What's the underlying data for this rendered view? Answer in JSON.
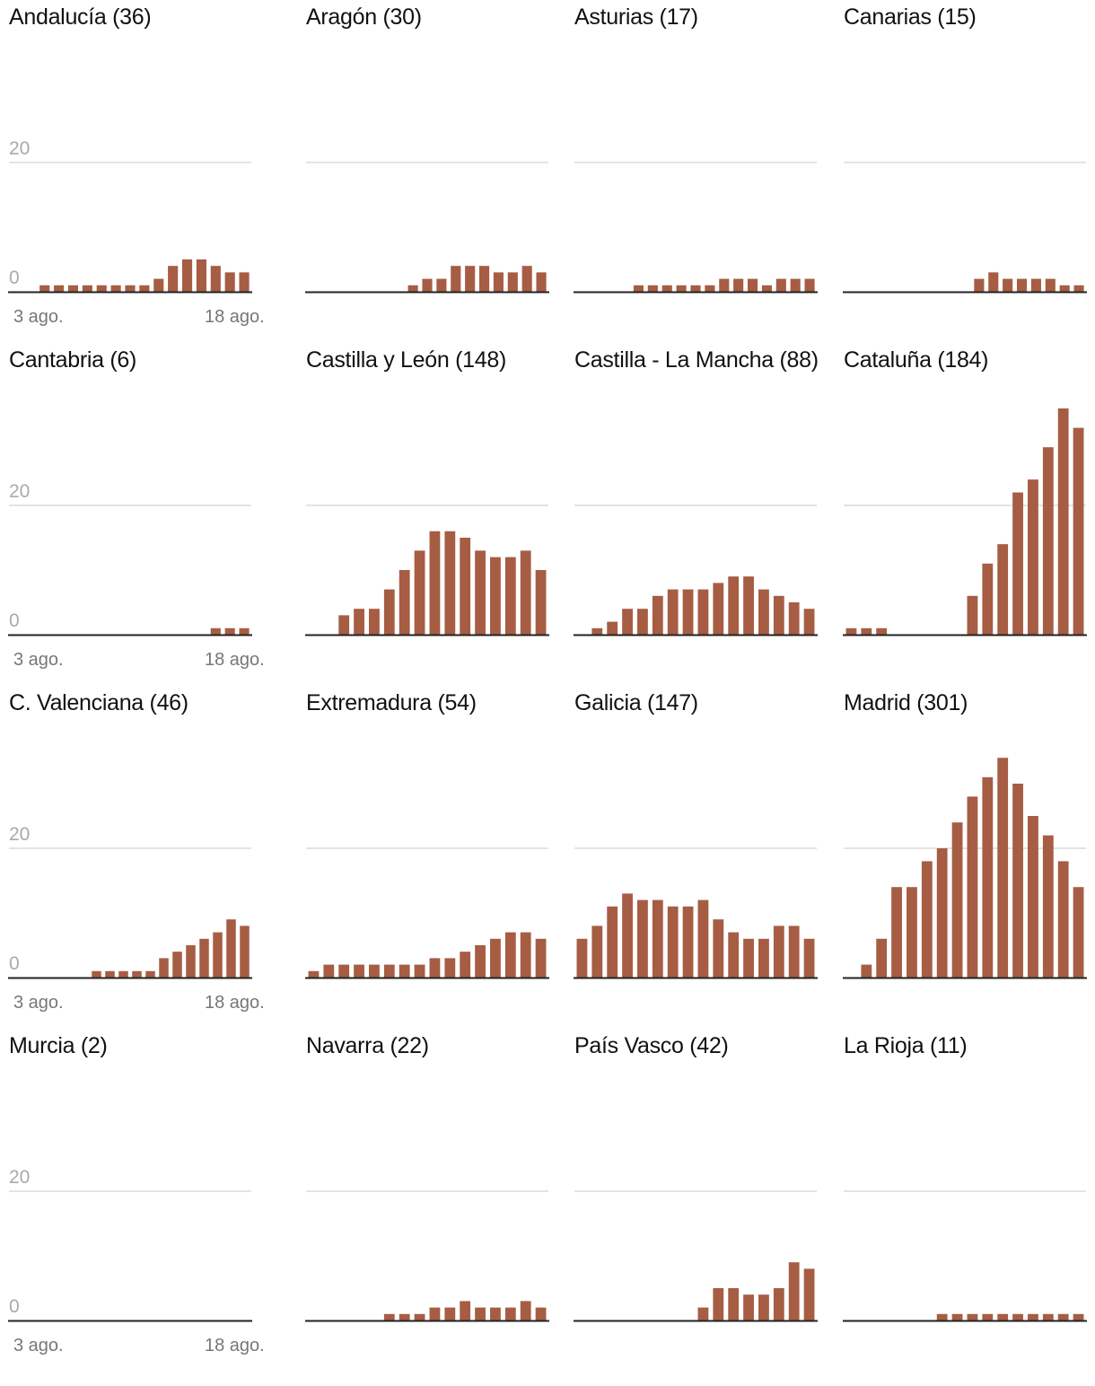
{
  "chart_data": {
    "type": "bar",
    "layout": "small-multiples",
    "y_ticks": [
      0,
      20
    ],
    "ylim": [
      0,
      38
    ],
    "x_tick_labels": [
      "3 ago.",
      "18 ago."
    ],
    "bar_color": "#a65d44",
    "gridline_color": "#e4e4e4",
    "axis_color": "#222222",
    "panels": [
      {
        "title": "Andalucía (36)",
        "values": [
          0,
          0,
          1,
          1,
          1,
          1,
          1,
          1,
          1,
          1,
          2,
          4,
          5,
          5,
          4,
          3,
          3
        ]
      },
      {
        "title": "Aragón (30)",
        "values": [
          0,
          0,
          0,
          0,
          0,
          0,
          0,
          1,
          2,
          2,
          4,
          4,
          4,
          3,
          3,
          4,
          3
        ]
      },
      {
        "title": "Asturias (17)",
        "values": [
          0,
          0,
          0,
          0,
          1,
          1,
          1,
          1,
          1,
          1,
          2,
          2,
          2,
          1,
          2,
          2,
          2
        ]
      },
      {
        "title": "Canarias (15)",
        "values": [
          0,
          0,
          0,
          0,
          0,
          0,
          0,
          0,
          0,
          2,
          3,
          2,
          2,
          2,
          2,
          1,
          1
        ]
      },
      {
        "title": "Cantabria (6)",
        "values": [
          0,
          0,
          0,
          0,
          0,
          0,
          0,
          0,
          0,
          0,
          0,
          0,
          0,
          0,
          1,
          1,
          1
        ]
      },
      {
        "title": "Castilla y León (148)",
        "values": [
          0,
          0,
          3,
          4,
          4,
          7,
          10,
          13,
          16,
          16,
          15,
          13,
          12,
          12,
          13,
          10
        ]
      },
      {
        "title": "Castilla - La Mancha (88)",
        "values": [
          0,
          1,
          2,
          4,
          4,
          6,
          7,
          7,
          7,
          8,
          9,
          9,
          7,
          6,
          5,
          4
        ]
      },
      {
        "title": "Cataluña (184)",
        "values": [
          1,
          1,
          1,
          0,
          0,
          0,
          0,
          0,
          6,
          11,
          14,
          22,
          24,
          29,
          35,
          32
        ]
      },
      {
        "title": "C. Valenciana (46)",
        "values": [
          0,
          0,
          0,
          0,
          0,
          0,
          1,
          1,
          1,
          1,
          1,
          3,
          4,
          5,
          6,
          7,
          9,
          8
        ]
      },
      {
        "title": "Extremadura (54)",
        "values": [
          1,
          2,
          2,
          2,
          2,
          2,
          2,
          2,
          3,
          3,
          4,
          5,
          6,
          7,
          7,
          6
        ]
      },
      {
        "title": "Galicia (147)",
        "values": [
          6,
          8,
          11,
          13,
          12,
          12,
          11,
          11,
          12,
          9,
          7,
          6,
          6,
          8,
          8,
          6
        ]
      },
      {
        "title": "Madrid (301)",
        "values": [
          0,
          2,
          6,
          14,
          14,
          18,
          20,
          24,
          28,
          31,
          34,
          30,
          25,
          22,
          18,
          14
        ]
      },
      {
        "title": "Murcia (2)",
        "values": [
          0,
          0,
          0,
          0,
          0,
          0,
          0,
          0,
          0,
          0,
          0,
          0,
          0,
          0,
          0,
          0
        ]
      },
      {
        "title": "Navarra (22)",
        "values": [
          0,
          0,
          0,
          0,
          0,
          1,
          1,
          1,
          2,
          2,
          3,
          2,
          2,
          2,
          3,
          2
        ]
      },
      {
        "title": "País Vasco (42)",
        "values": [
          0,
          0,
          0,
          0,
          0,
          0,
          0,
          0,
          2,
          5,
          5,
          4,
          4,
          5,
          9,
          8
        ]
      },
      {
        "title": "La Rioja (11)",
        "values": [
          0,
          0,
          0,
          0,
          0,
          0,
          1,
          1,
          1,
          1,
          1,
          1,
          1,
          1,
          1,
          1
        ]
      }
    ],
    "panels_with_y_labels": [
      0,
      4,
      8,
      12
    ],
    "panels_with_x_labels": [
      0,
      4,
      8,
      12
    ]
  }
}
